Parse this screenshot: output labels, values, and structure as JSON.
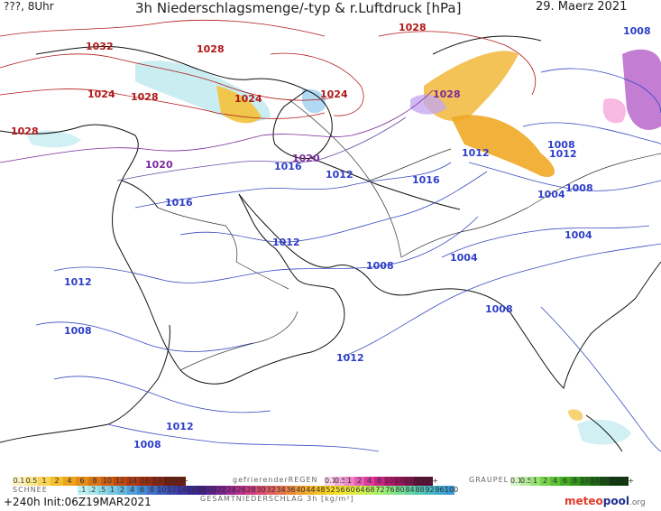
{
  "header": {
    "left": "???, 8Uhr",
    "title": "3h Niederschlagsmenge/-typ & r.Luftdruck [hPa]",
    "date": "29. Maerz 2021"
  },
  "footer": {
    "run": "+240h Init:06Z19MAR2021",
    "logo_brand": "meteo",
    "logo_name": "pool",
    "logo_tld": ".org"
  },
  "isobars": {
    "labels": [
      {
        "text": "1032",
        "color": "#b01818"
      },
      {
        "text": "1028",
        "color": "#b01818"
      },
      {
        "text": "1024",
        "color": "#b01818"
      },
      {
        "text": "1028",
        "color": "#b01818"
      },
      {
        "text": "1028",
        "color": "#b01818"
      },
      {
        "text": "1024",
        "color": "#b01818"
      },
      {
        "text": "1024",
        "color": "#b01818"
      },
      {
        "text": "1028",
        "color": "#b01818"
      },
      {
        "text": "1028",
        "color": "#7a2a9a"
      },
      {
        "text": "1020",
        "color": "#7a2a9a"
      },
      {
        "text": "1020",
        "color": "#7a2a9a"
      },
      {
        "text": "1016",
        "color": "#2e3fc8"
      },
      {
        "text": "1016",
        "color": "#2e3fc8"
      },
      {
        "text": "1012",
        "color": "#2e3fc8"
      },
      {
        "text": "1016",
        "color": "#2e3fc8"
      },
      {
        "text": "1012",
        "color": "#2e3fc8"
      },
      {
        "text": "1008",
        "color": "#2e3fc8"
      },
      {
        "text": "1012",
        "color": "#2e3fc8"
      },
      {
        "text": "1008",
        "color": "#2e3fc8"
      },
      {
        "text": "1004",
        "color": "#2e3fc8"
      },
      {
        "text": "1008",
        "color": "#2e3fc8"
      },
      {
        "text": "1012",
        "color": "#2e3fc8"
      },
      {
        "text": "1004",
        "color": "#2e3fc8"
      },
      {
        "text": "1008",
        "color": "#2e3fc8"
      },
      {
        "text": "1004",
        "color": "#2e3fc8"
      },
      {
        "text": "1008",
        "color": "#2e3fc8"
      },
      {
        "text": "1012",
        "color": "#2e3fc8"
      },
      {
        "text": "1012",
        "color": "#2e3fc8"
      },
      {
        "text": "1012",
        "color": "#2e3fc8"
      },
      {
        "text": "1008",
        "color": "#2e3fc8"
      },
      {
        "text": "1008",
        "color": "#2e3fc8"
      }
    ]
  },
  "legend": {
    "snow_label": "SCHNEE",
    "freezing_label": "gefrierenderREGEN",
    "graupel_label": "GRAUPEL",
    "total_label": "GESAMTNIEDERSCHLAG 3h [kg/m²]",
    "rain_steps": [
      "0.1",
      "0.5",
      "1",
      "2",
      "4",
      "6",
      "8",
      "10",
      "12",
      "14",
      "16",
      "18",
      "2025+"
    ],
    "rain_colors": [
      "#fdf3c0",
      "#fbe68a",
      "#f9d456",
      "#f4bd2c",
      "#eda41c",
      "#e38c16",
      "#d97414",
      "#cd5e12",
      "#bf4a10",
      "#ae3a10",
      "#9c2e10",
      "#8a2410",
      "#6f1c0e"
    ],
    "freezing_steps": [
      "0.1",
      "0.5",
      "1",
      "2",
      "4",
      "8",
      "10",
      "14",
      "16",
      "2025+"
    ],
    "freezing_colors": [
      "#f7d0ea",
      "#f2a8d8",
      "#ec84c6",
      "#e45cb2",
      "#d83a9c",
      "#c82284",
      "#b3166e",
      "#9a105a",
      "#80104a",
      "#5e0c36"
    ],
    "graupel_steps": [
      "0.1",
      "0.5",
      "1",
      "2",
      "4",
      "6",
      "8",
      "10",
      "14",
      "16",
      "2025+"
    ],
    "graupel_colors": [
      "#d6f5c8",
      "#b8ec9e",
      "#98e074",
      "#78d14c",
      "#5cc032",
      "#44aa22",
      "#34931a",
      "#267c14",
      "#1b6410",
      "#124e0c",
      "#0c380a"
    ],
    "snow_steps": [
      ".1",
      ".2",
      ".5",
      "1",
      "2",
      "4",
      "6",
      "8",
      "10",
      "12",
      "14",
      "16",
      "18",
      "20",
      "22",
      "24",
      "26",
      "28",
      "30",
      "32",
      "34",
      "36",
      "40",
      "44",
      "48",
      "52",
      "56",
      "60",
      "64",
      "68",
      "72",
      "76",
      "80",
      "84",
      "88",
      "92",
      "96",
      "100"
    ],
    "snow_colors": [
      "#bff0f2",
      "#a8e6ec",
      "#8fd8e6",
      "#78c8e2",
      "#63b6de",
      "#509fd8",
      "#4488d0",
      "#3f70c6",
      "#3b5bbc",
      "#3a46b0",
      "#3a35a2",
      "#3a2894",
      "#3d2088",
      "#5a1f8c",
      "#7a228e",
      "#9a278e",
      "#b82e8a",
      "#cc3a80",
      "#d84a70",
      "#e05e5e",
      "#e6724c",
      "#eb873c",
      "#ef9c30",
      "#f2b028",
      "#f4c424",
      "#f5d624",
      "#f2e22a",
      "#e6ea38",
      "#d2ee48",
      "#bcee5a",
      "#a4ec6c",
      "#8ce67e",
      "#76de90",
      "#62d4a2",
      "#52c8b2",
      "#46bac0",
      "#3eaacc",
      "#3a98d4"
    ]
  }
}
